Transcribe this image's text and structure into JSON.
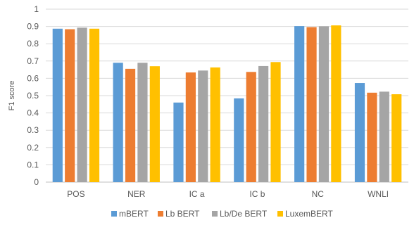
{
  "chart_data": {
    "type": "bar",
    "title": "",
    "xlabel": "",
    "ylabel": "F1 score",
    "ylim": [
      0,
      1
    ],
    "yticks": [
      "0",
      "0.1",
      "0.2",
      "0.3",
      "0.4",
      "0.5",
      "0.6",
      "0.7",
      "0.8",
      "0.9",
      "1"
    ],
    "grid": true,
    "legend_position": "bottom",
    "categories": [
      "POS",
      "NER",
      "IC a",
      "IC b",
      "NC",
      "WNLI"
    ],
    "series": [
      {
        "name": "mBERT",
        "color": "#5b9bd5",
        "values": [
          0.887,
          0.69,
          0.46,
          0.484,
          0.902,
          0.573
        ]
      },
      {
        "name": "Lb BERT",
        "color": "#ed7d31",
        "values": [
          0.884,
          0.655,
          0.634,
          0.637,
          0.896,
          0.517
        ]
      },
      {
        "name": "Lb/De BERT",
        "color": "#a5a5a5",
        "values": [
          0.893,
          0.69,
          0.645,
          0.671,
          0.901,
          0.523
        ]
      },
      {
        "name": "LuxemBERT",
        "color": "#ffc000",
        "values": [
          0.887,
          0.67,
          0.663,
          0.694,
          0.906,
          0.508
        ]
      }
    ]
  }
}
